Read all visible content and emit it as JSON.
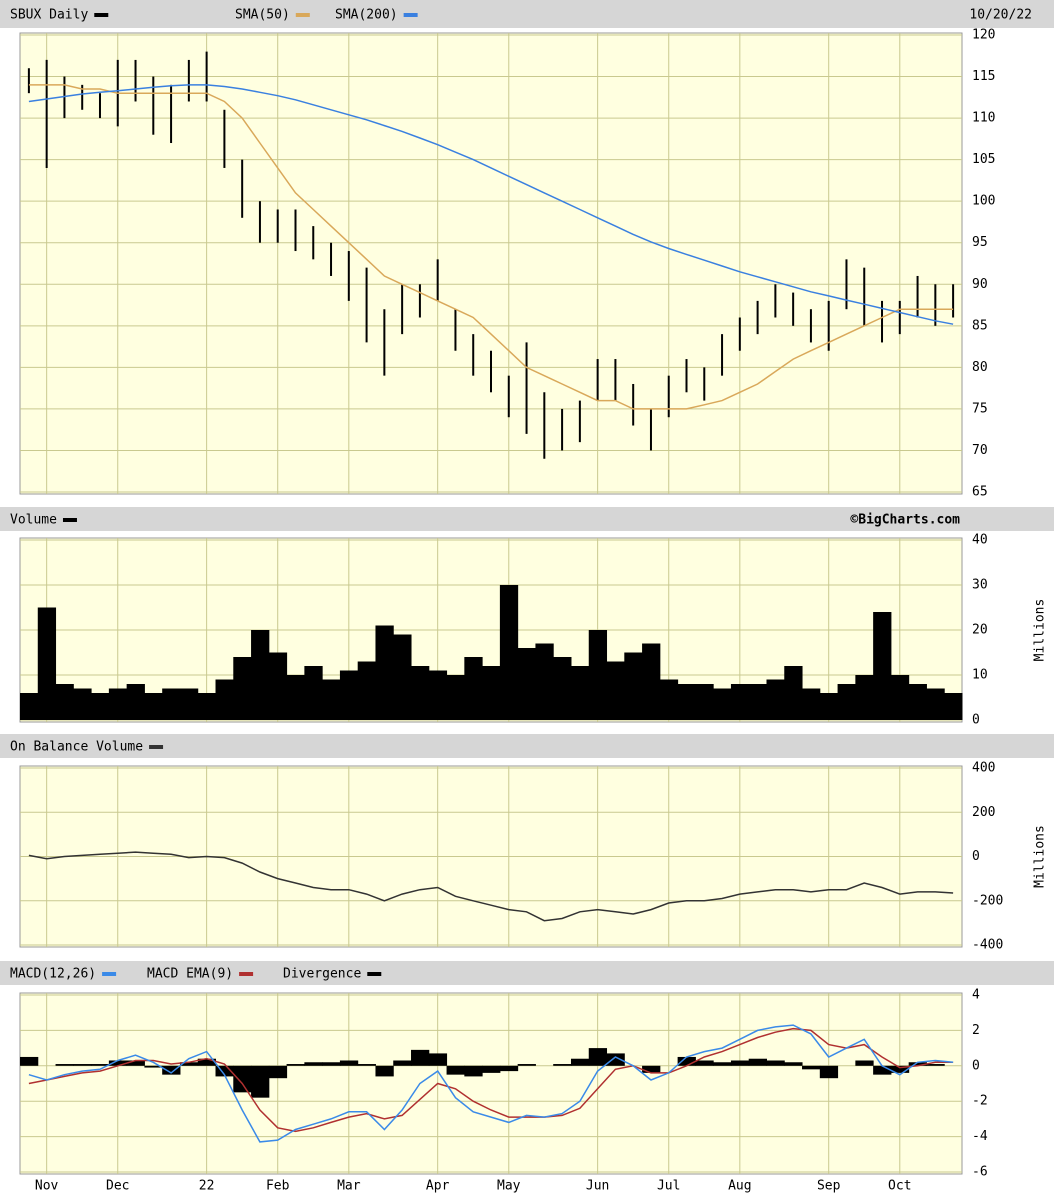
{
  "chart_data": [
    {
      "type": "price",
      "title": "SBUX Daily",
      "subtitle": "10/20/22",
      "series": [
        {
          "name": "SBUX Daily",
          "color": "#000000",
          "high": [
            116,
            117,
            115,
            114,
            113,
            117,
            117,
            115,
            114,
            117,
            118,
            111,
            105,
            100,
            99,
            99,
            97,
            95,
            94,
            92,
            87,
            90,
            90,
            93,
            87,
            84,
            82,
            79,
            83,
            77,
            75,
            76,
            81,
            81,
            78,
            75,
            79,
            81,
            80,
            84,
            86,
            88,
            90,
            89,
            87,
            88,
            93,
            92,
            88,
            88,
            91,
            90,
            90
          ],
          "low": [
            113,
            104,
            110,
            111,
            110,
            109,
            112,
            108,
            107,
            112,
            112,
            104,
            98,
            95,
            95,
            94,
            93,
            91,
            88,
            83,
            79,
            84,
            86,
            88,
            82,
            79,
            77,
            74,
            72,
            69,
            70,
            71,
            76,
            76,
            73,
            70,
            74,
            77,
            76,
            79,
            82,
            84,
            86,
            85,
            83,
            82,
            87,
            85,
            83,
            84,
            86,
            85,
            86
          ]
        },
        {
          "name": "SMA(50)",
          "color": "#d9a85a",
          "values": [
            114,
            114,
            114,
            113.5,
            113.5,
            113,
            113,
            113,
            113,
            113,
            113,
            112,
            110,
            107,
            104,
            101,
            99,
            97,
            95,
            93,
            91,
            90,
            89,
            88,
            87,
            86,
            84,
            82,
            80,
            79,
            78,
            77,
            76,
            76,
            75,
            75,
            75,
            75,
            75.5,
            76,
            77,
            78,
            79.5,
            81,
            82,
            83,
            84,
            85,
            86,
            87,
            87,
            87,
            87
          ]
        },
        {
          "name": "SMA(200)",
          "color": "#3a80e0",
          "values": [
            112,
            112.3,
            112.6,
            112.9,
            113.1,
            113.3,
            113.5,
            113.7,
            113.9,
            114,
            114,
            113.8,
            113.5,
            113.1,
            112.7,
            112.2,
            111.6,
            111,
            110.4,
            109.8,
            109.1,
            108.4,
            107.6,
            106.8,
            105.9,
            105,
            104,
            103,
            102,
            101,
            100,
            99,
            98,
            97,
            96,
            95.1,
            94.3,
            93.6,
            92.9,
            92.2,
            91.5,
            90.9,
            90.3,
            89.7,
            89.1,
            88.6,
            88.1,
            87.6,
            87.1,
            86.6,
            86.1,
            85.6,
            85.2
          ]
        }
      ],
      "ylim": [
        65,
        120
      ],
      "yticks": [
        65,
        70,
        75,
        80,
        85,
        90,
        95,
        100,
        105,
        110,
        115,
        120
      ],
      "grid": true
    },
    {
      "type": "bar",
      "annotation": "©BigCharts.com",
      "y_label": "Millions",
      "series": [
        {
          "name": "Volume",
          "color": "#000000",
          "values": [
            6,
            25,
            8,
            7,
            6,
            7,
            8,
            6,
            7,
            7,
            6,
            9,
            14,
            20,
            15,
            10,
            12,
            9,
            11,
            13,
            21,
            19,
            12,
            11,
            10,
            14,
            12,
            30,
            16,
            17,
            14,
            12,
            20,
            13,
            15,
            17,
            9,
            8,
            8,
            7,
            8,
            8,
            9,
            12,
            7,
            6,
            8,
            10,
            24,
            10,
            8,
            7,
            6
          ]
        }
      ],
      "ylim": [
        0,
        40
      ],
      "yticks": [
        0,
        10,
        20,
        30,
        40
      ],
      "grid": true
    },
    {
      "type": "line",
      "y_label": "Millions",
      "series": [
        {
          "name": "On Balance Volume",
          "color": "#333333",
          "values": [
            5,
            -10,
            0,
            5,
            10,
            15,
            20,
            15,
            10,
            -5,
            0,
            -5,
            -30,
            -70,
            -100,
            -120,
            -140,
            -150,
            -150,
            -170,
            -200,
            -170,
            -150,
            -140,
            -180,
            -200,
            -220,
            -240,
            -250,
            -290,
            -280,
            -250,
            -240,
            -250,
            -260,
            -240,
            -210,
            -200,
            -200,
            -190,
            -170,
            -160,
            -150,
            -150,
            -160,
            -150,
            -150,
            -120,
            -140,
            -170,
            -160,
            -160,
            -165
          ]
        }
      ],
      "ylim": [
        -400,
        400
      ],
      "yticks": [
        -400,
        -200,
        0,
        200,
        400
      ],
      "grid": true
    },
    {
      "type": "macd",
      "categories": [
        null,
        "Nov",
        null,
        null,
        null,
        "Dec",
        null,
        null,
        null,
        null,
        "22",
        null,
        null,
        null,
        "Feb",
        null,
        null,
        null,
        "Mar",
        null,
        null,
        null,
        null,
        "Apr",
        null,
        null,
        null,
        "May",
        null,
        null,
        null,
        null,
        "Jun",
        null,
        null,
        null,
        "Jul",
        null,
        null,
        null,
        "Aug",
        null,
        null,
        null,
        null,
        "Sep",
        null,
        null,
        null,
        "Oct",
        null,
        null,
        null
      ],
      "series": [
        {
          "name": "MACD(12,26)",
          "color": "#3a8ae8",
          "values": [
            -0.5,
            -0.8,
            -0.5,
            -0.3,
            -0.2,
            0.3,
            0.6,
            0.2,
            -0.4,
            0.4,
            0.8,
            -0.5,
            -2.5,
            -4.3,
            -4.2,
            -3.6,
            -3.3,
            -3,
            -2.6,
            -2.6,
            -3.6,
            -2.5,
            -1,
            -0.3,
            -1.8,
            -2.6,
            -2.9,
            -3.2,
            -2.8,
            -2.9,
            -2.7,
            -2,
            -0.3,
            0.5,
            0,
            -0.8,
            -0.4,
            0.5,
            0.8,
            1,
            1.5,
            2,
            2.2,
            2.3,
            1.8,
            0.5,
            1,
            1.5,
            0,
            -0.5,
            0.2,
            0.3,
            0.2
          ]
        },
        {
          "name": "MACD EMA(9)",
          "color": "#b03030",
          "values": [
            -1,
            -0.8,
            -0.6,
            -0.4,
            -0.3,
            0,
            0.3,
            0.3,
            0.1,
            0.2,
            0.4,
            0.1,
            -1,
            -2.5,
            -3.5,
            -3.7,
            -3.5,
            -3.2,
            -2.9,
            -2.7,
            -3,
            -2.8,
            -1.9,
            -1,
            -1.3,
            -2,
            -2.5,
            -2.9,
            -2.9,
            -2.9,
            -2.8,
            -2.4,
            -1.3,
            -0.2,
            0,
            -0.4,
            -0.4,
            0,
            0.5,
            0.8,
            1.2,
            1.6,
            1.9,
            2.1,
            2,
            1.2,
            1,
            1.2,
            0.5,
            -0.1,
            0,
            0.2,
            0.2
          ]
        },
        {
          "name": "Divergence",
          "color": "#000000",
          "values": [
            0.5,
            0,
            0.1,
            0.1,
            0.1,
            0.3,
            0.3,
            -0.1,
            -0.5,
            0.2,
            0.4,
            -0.6,
            -1.5,
            -1.8,
            -0.7,
            0.1,
            0.2,
            0.2,
            0.3,
            0.1,
            -0.6,
            0.3,
            0.9,
            0.7,
            -0.5,
            -0.6,
            -0.4,
            -0.3,
            0.1,
            0,
            0.1,
            0.4,
            1,
            0.7,
            0,
            -0.4,
            0,
            0.5,
            0.3,
            0.2,
            0.3,
            0.4,
            0.3,
            0.2,
            -0.2,
            -0.7,
            0,
            0.3,
            -0.5,
            -0.4,
            0.2,
            0.1,
            0
          ]
        }
      ],
      "ylim": [
        -6,
        4
      ],
      "yticks": [
        -6,
        -4,
        -2,
        0,
        2,
        4
      ],
      "grid": true
    }
  ]
}
